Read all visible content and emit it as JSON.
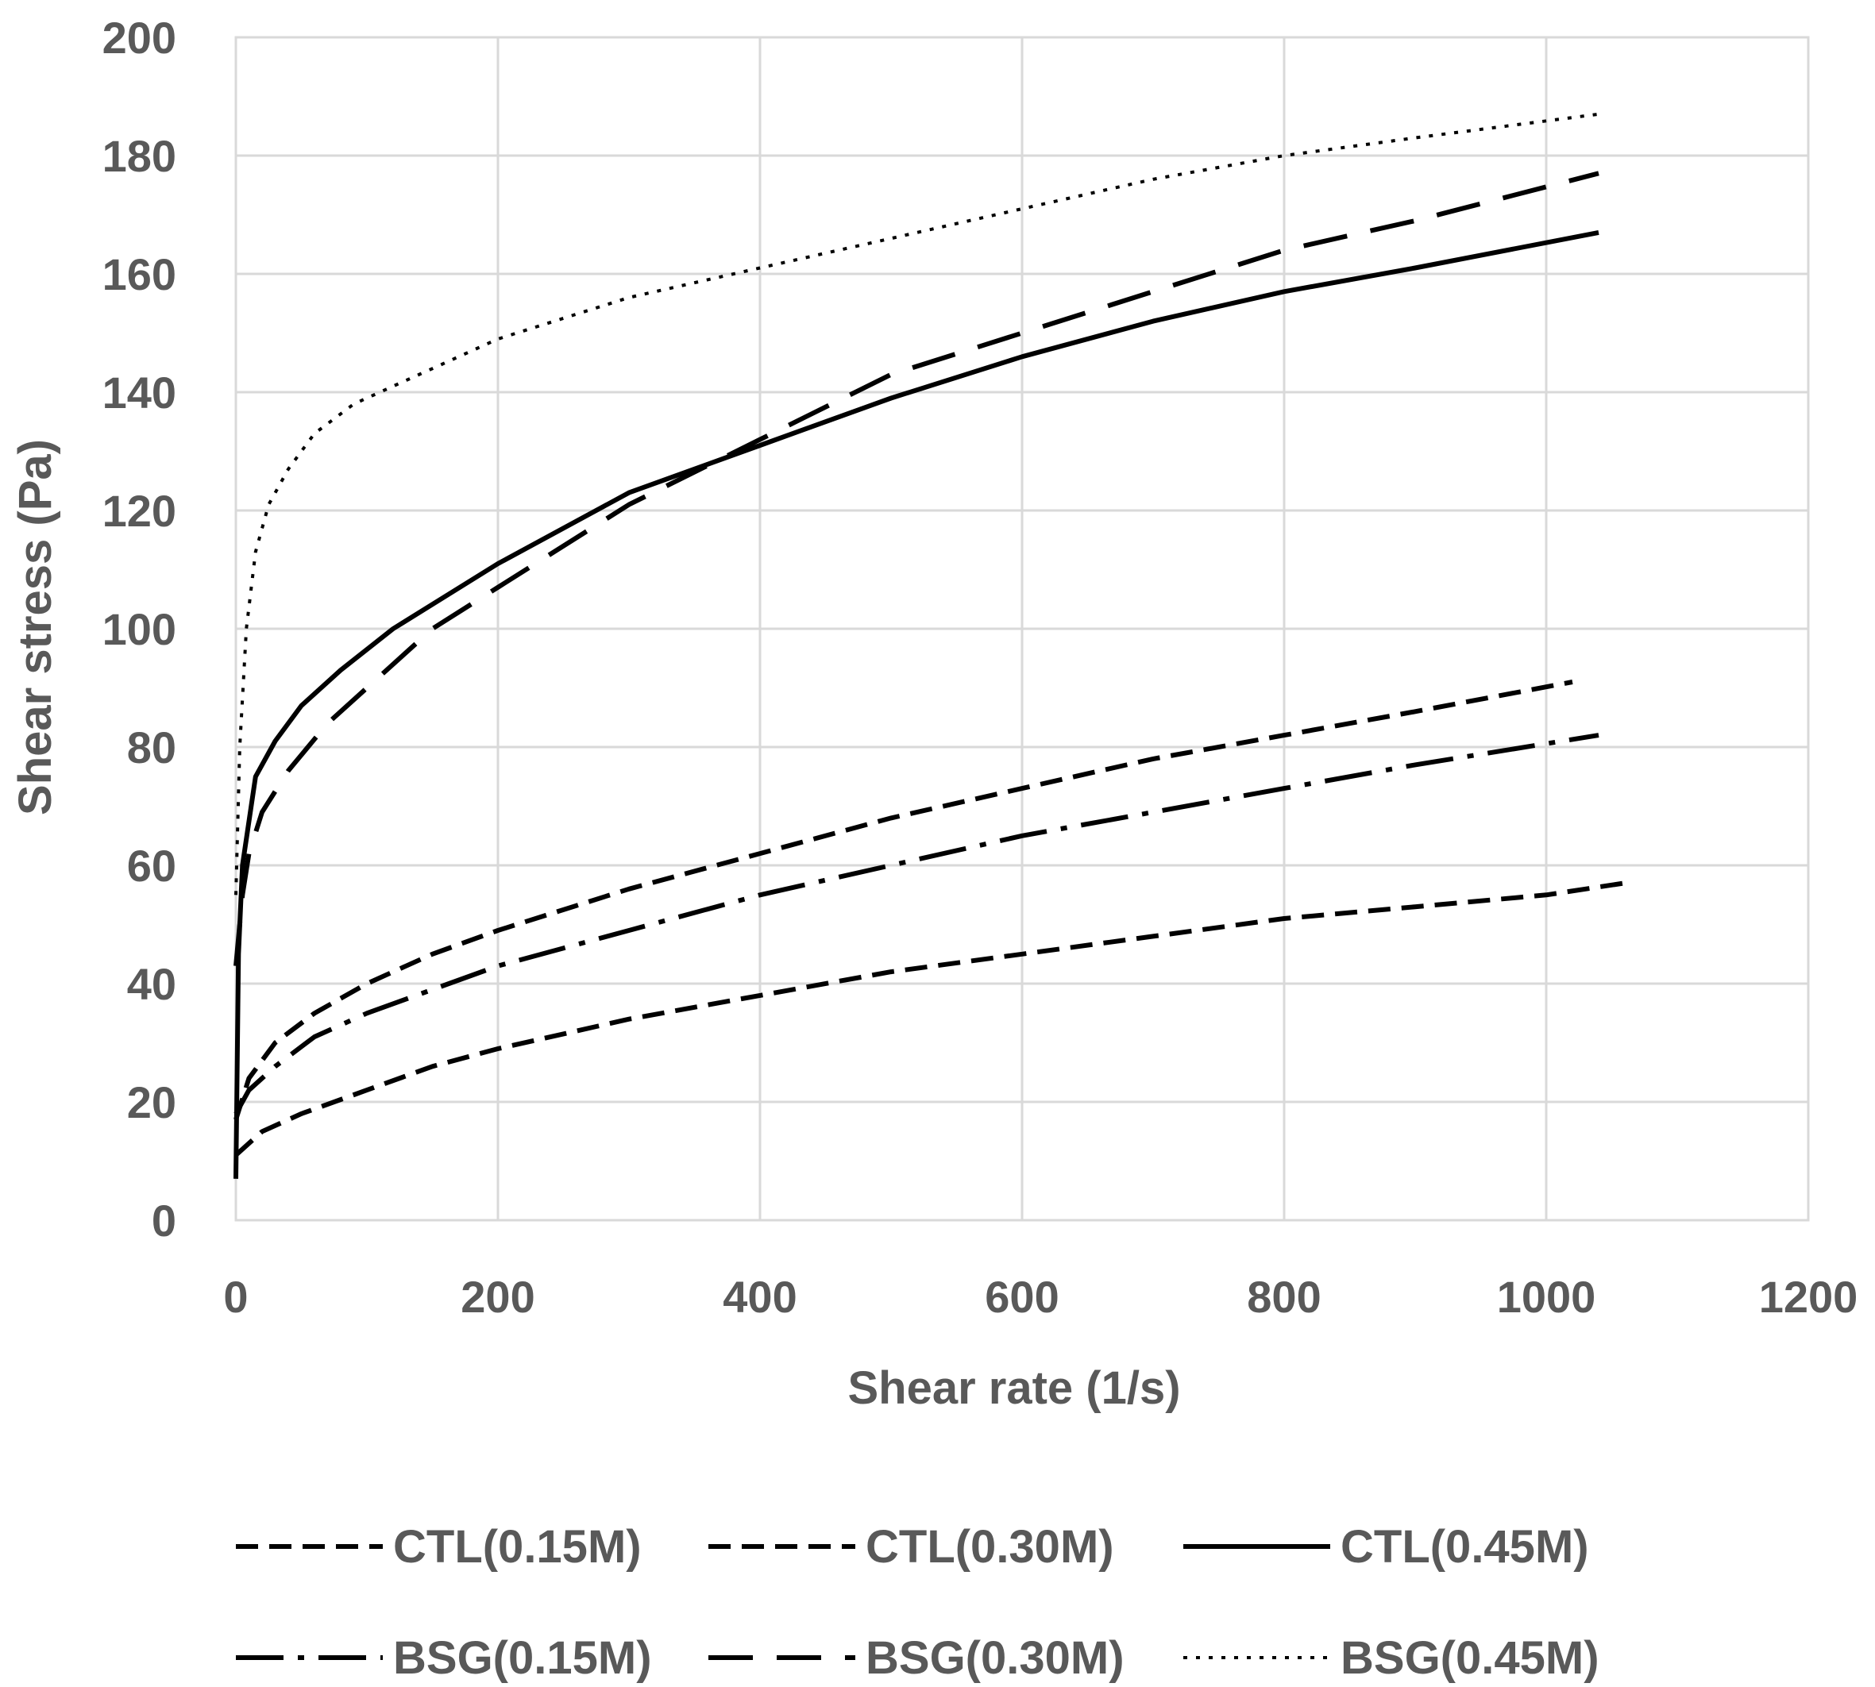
{
  "chart_data": {
    "type": "line",
    "title": "",
    "xlabel": "Shear rate (1/s)",
    "ylabel": "Shear stress (Pa)",
    "xlim": [
      0,
      1200
    ],
    "ylim": [
      0,
      200
    ],
    "xticks": [
      "0",
      "200",
      "400",
      "600",
      "800",
      "1000",
      "1200"
    ],
    "yticks": [
      "0",
      "20",
      "40",
      "60",
      "80",
      "100",
      "120",
      "140",
      "160",
      "180",
      "200"
    ],
    "grid": true,
    "legend_position": "bottom",
    "series": [
      {
        "name": "CTL(0.15M)",
        "style": "short-dash",
        "x": [
          0,
          20,
          50,
          100,
          150,
          200,
          300,
          400,
          500,
          600,
          700,
          800,
          900,
          1000,
          1060
        ],
        "y": [
          11,
          15,
          18,
          22,
          26,
          29,
          34,
          38,
          42,
          45,
          48,
          51,
          53,
          55,
          57
        ]
      },
      {
        "name": "CTL(0.30M)",
        "style": "short-dash",
        "x": [
          0,
          10,
          30,
          60,
          100,
          150,
          200,
          300,
          400,
          500,
          600,
          700,
          800,
          900,
          1020
        ],
        "y": [
          17,
          24,
          30,
          35,
          40,
          45,
          49,
          56,
          62,
          68,
          73,
          78,
          82,
          86,
          91
        ]
      },
      {
        "name": "CTL(0.45M)",
        "style": "solid",
        "x": [
          0,
          2,
          5,
          15,
          30,
          50,
          80,
          120,
          200,
          300,
          400,
          500,
          600,
          700,
          800,
          900,
          1040
        ],
        "y": [
          7,
          45,
          60,
          75,
          81,
          87,
          93,
          100,
          111,
          123,
          131,
          139,
          146,
          152,
          157,
          161,
          167
        ]
      },
      {
        "name": "BSG(0.15M)",
        "style": "dash-dot",
        "x": [
          0,
          10,
          30,
          60,
          100,
          150,
          200,
          300,
          400,
          500,
          600,
          700,
          800,
          900,
          1040
        ],
        "y": [
          18,
          22,
          26,
          31,
          35,
          39,
          43,
          49,
          55,
          60,
          65,
          69,
          73,
          77,
          82
        ]
      },
      {
        "name": "BSG(0.30M)",
        "style": "long-dash",
        "x": [
          0,
          5,
          10,
          20,
          40,
          70,
          100,
          150,
          200,
          300,
          400,
          500,
          600,
          700,
          800,
          900,
          1040
        ],
        "y": [
          43,
          55,
          62,
          69,
          76,
          84,
          90,
          100,
          107,
          121,
          132,
          143,
          150,
          157,
          164,
          169,
          177
        ]
      },
      {
        "name": "BSG(0.45M)",
        "style": "dotted",
        "x": [
          0,
          3,
          8,
          15,
          25,
          40,
          60,
          90,
          120,
          160,
          200,
          300,
          400,
          500,
          600,
          700,
          800,
          900,
          1040
        ],
        "y": [
          55,
          80,
          100,
          113,
          121,
          127,
          133,
          138,
          141,
          145,
          149,
          156,
          161,
          166,
          171,
          176,
          180,
          183,
          187
        ]
      }
    ]
  }
}
